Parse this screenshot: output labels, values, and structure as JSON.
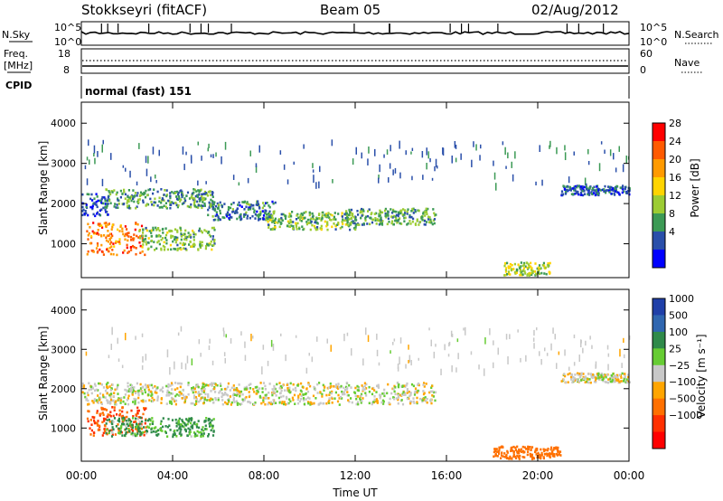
{
  "header": {
    "station": "Stokkseyri (fitACF)",
    "beam": "Beam 05",
    "date": "02/Aug/2012"
  },
  "noise_panel": {
    "left_label": "N.Sky",
    "left_ticks": [
      "10^5",
      "10^0"
    ],
    "right_label": "N.Search",
    "right_ticks": [
      "10^5",
      "10^0"
    ]
  },
  "freq_panel": {
    "left_label_1": "Freq.",
    "left_label_2": "[MHz]",
    "left_ticks": [
      "18",
      "8"
    ],
    "right_label": "Nave",
    "right_ticks": [
      "60",
      "0"
    ]
  },
  "cpid_panel": {
    "label": "CPID",
    "mode_text": "normal (fast) 151"
  },
  "power_panel": {
    "ylabel": "Slant Range [km]",
    "yticks": [
      "4000",
      "3000",
      "2000",
      "1000"
    ],
    "colorbar_label": "Power [dB]",
    "colorbar_ticks": [
      "28",
      "24",
      "20",
      "16",
      "12",
      "8",
      "4"
    ],
    "colorbar_colors": [
      "#ff0000",
      "#ff5a00",
      "#ff9a00",
      "#ffd400",
      "#9ccc33",
      "#3c9a55",
      "#2a4faa",
      "#0000ff"
    ]
  },
  "velocity_panel": {
    "ylabel": "Slant Range [km]",
    "yticks": [
      "4000",
      "3000",
      "2000",
      "1000"
    ],
    "colorbar_label": "Velocity [m s⁻¹]",
    "colorbar_ticks": [
      "1000",
      "500",
      "100",
      "25",
      "−25",
      "−100",
      "−500",
      "−1000"
    ],
    "colorbar_colors": [
      "#1f3fa8",
      "#2f66b0",
      "#2f8a4a",
      "#66cc33",
      "#c8c8c8",
      "#ffa500",
      "#ff7000",
      "#ff3000",
      "#ff0000"
    ]
  },
  "xaxis": {
    "ticks": [
      "00:00",
      "04:00",
      "08:00",
      "12:00",
      "16:00",
      "20:00",
      "00:00"
    ],
    "label": "Time UT"
  },
  "chart_data": {
    "type": "heatmap",
    "title": "Stokkseyri (fitACF)",
    "subtitle": "Beam 05",
    "date": "02/Aug/2012",
    "xlabel": "Time UT",
    "ylabel": "Slant Range [km]",
    "xlim_hours": [
      0,
      24
    ],
    "ylim_km": [
      180,
      4500
    ],
    "grid": false,
    "power_scatter_regions": [
      {
        "t_start": 0.0,
        "t_end": 1.2,
        "range_km": 2000,
        "thickness_km": 350,
        "power_db": 6
      },
      {
        "t_start": 1.0,
        "t_end": 5.8,
        "range_km": 2150,
        "thickness_km": 300,
        "power_db": 10
      },
      {
        "t_start": 5.5,
        "t_end": 8.5,
        "range_km": 1850,
        "thickness_km": 300,
        "power_db": 8
      },
      {
        "t_start": 8.0,
        "t_end": 12.0,
        "range_km": 1600,
        "thickness_km": 280,
        "power_db": 12
      },
      {
        "t_start": 11.5,
        "t_end": 15.5,
        "range_km": 1700,
        "thickness_km": 250,
        "power_db": 11
      },
      {
        "t_start": 0.2,
        "t_end": 2.8,
        "range_km": 1150,
        "thickness_km": 500,
        "power_db": 24
      },
      {
        "t_start": 2.5,
        "t_end": 5.8,
        "range_km": 1150,
        "thickness_km": 350,
        "power_db": 12
      },
      {
        "t_start": 18.5,
        "t_end": 20.5,
        "range_km": 400,
        "thickness_km": 200,
        "power_db": 14
      },
      {
        "t_start": 21.0,
        "t_end": 24.0,
        "range_km": 2350,
        "thickness_km": 150,
        "power_db": 6
      }
    ],
    "velocity_scatter_regions": [
      {
        "t_start": 0.0,
        "t_end": 15.5,
        "range_km": 1900,
        "thickness_km": 350,
        "velocity_ms": 0
      },
      {
        "t_start": 0.2,
        "t_end": 2.8,
        "range_km": 1200,
        "thickness_km": 450,
        "velocity_ms": -300
      },
      {
        "t_start": 1.0,
        "t_end": 5.8,
        "range_km": 1050,
        "thickness_km": 300,
        "velocity_ms": 80
      },
      {
        "t_start": 18.0,
        "t_end": 21.0,
        "range_km": 400,
        "thickness_km": 200,
        "velocity_ms": -150
      },
      {
        "t_start": 21.0,
        "t_end": 24.0,
        "range_km": 2300,
        "thickness_km": 150,
        "velocity_ms": 0
      }
    ],
    "frequency_mhz": 10.5,
    "nave_level": 20,
    "cpid_mode": "normal (fast) 151"
  }
}
